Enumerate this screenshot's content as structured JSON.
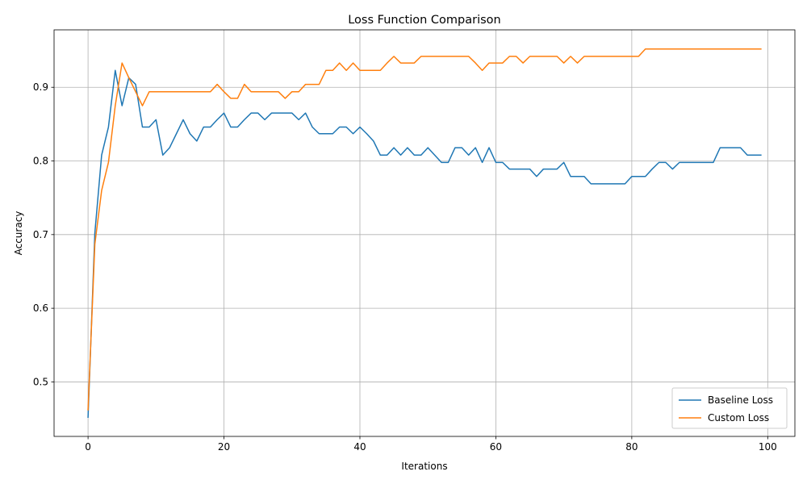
{
  "chart_data": {
    "type": "line",
    "title": "Loss Function Comparison",
    "xlabel": "Iterations",
    "ylabel": "Accuracy",
    "xlim": [
      -5,
      104
    ],
    "ylim": [
      0.426,
      0.978
    ],
    "x_ticks": [
      0,
      20,
      40,
      60,
      80,
      100
    ],
    "y_ticks": [
      0.5,
      0.6,
      0.7,
      0.8,
      0.9
    ],
    "y_tick_labels": [
      "0.5",
      "0.6",
      "0.7",
      "0.8",
      "0.9"
    ],
    "grid": true,
    "legend_position": "bottom-right",
    "series": [
      {
        "name": "Baseline Loss",
        "color": "#1f77b4",
        "values": [
          0.452,
          0.702,
          0.808,
          0.846,
          0.923,
          0.875,
          0.913,
          0.904,
          0.846,
          0.846,
          0.856,
          0.808,
          0.818,
          0.837,
          0.856,
          0.837,
          0.827,
          0.846,
          0.846,
          0.856,
          0.865,
          0.846,
          0.846,
          0.856,
          0.865,
          0.865,
          0.856,
          0.865,
          0.865,
          0.865,
          0.865,
          0.856,
          0.865,
          0.846,
          0.837,
          0.837,
          0.837,
          0.846,
          0.846,
          0.837,
          0.846,
          0.837,
          0.827,
          0.808,
          0.808,
          0.818,
          0.808,
          0.818,
          0.808,
          0.808,
          0.818,
          0.808,
          0.798,
          0.798,
          0.818,
          0.818,
          0.808,
          0.818,
          0.798,
          0.818,
          0.798,
          0.798,
          0.789,
          0.789,
          0.789,
          0.789,
          0.779,
          0.789,
          0.789,
          0.789,
          0.798,
          0.779,
          0.779,
          0.779,
          0.769,
          0.769,
          0.769,
          0.769,
          0.769,
          0.769,
          0.779,
          0.779,
          0.779,
          0.789,
          0.798,
          0.798,
          0.789,
          0.798,
          0.798,
          0.798,
          0.798,
          0.798,
          0.798,
          0.818,
          0.818,
          0.818,
          0.818,
          0.808,
          0.808,
          0.808
        ]
      },
      {
        "name": "Custom Loss",
        "color": "#ff7f0e",
        "values": [
          0.462,
          0.687,
          0.76,
          0.798,
          0.875,
          0.933,
          0.913,
          0.894,
          0.875,
          0.894,
          0.894,
          0.894,
          0.894,
          0.894,
          0.894,
          0.894,
          0.894,
          0.894,
          0.894,
          0.904,
          0.894,
          0.885,
          0.885,
          0.904,
          0.894,
          0.894,
          0.894,
          0.894,
          0.894,
          0.885,
          0.894,
          0.894,
          0.904,
          0.904,
          0.904,
          0.923,
          0.923,
          0.933,
          0.923,
          0.933,
          0.923,
          0.923,
          0.923,
          0.923,
          0.933,
          0.942,
          0.933,
          0.933,
          0.933,
          0.942,
          0.942,
          0.942,
          0.942,
          0.942,
          0.942,
          0.942,
          0.942,
          0.933,
          0.923,
          0.933,
          0.933,
          0.933,
          0.942,
          0.942,
          0.933,
          0.942,
          0.942,
          0.942,
          0.942,
          0.942,
          0.933,
          0.942,
          0.933,
          0.942,
          0.942,
          0.942,
          0.942,
          0.942,
          0.942,
          0.942,
          0.942,
          0.942,
          0.952,
          0.952,
          0.952,
          0.952,
          0.952,
          0.952,
          0.952,
          0.952,
          0.952,
          0.952,
          0.952,
          0.952,
          0.952,
          0.952,
          0.952,
          0.952,
          0.952,
          0.952
        ]
      }
    ]
  }
}
